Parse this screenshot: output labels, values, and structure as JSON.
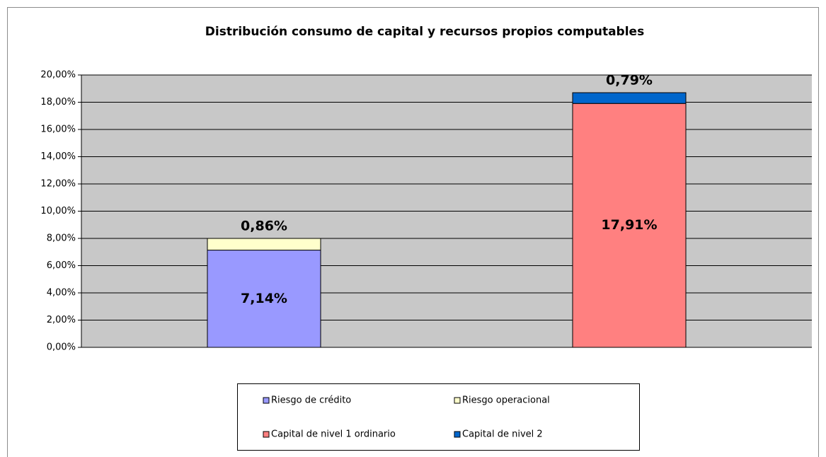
{
  "chart_data": {
    "type": "stacked-bar",
    "title": "Distribución consumo de capital y recursos propios computables",
    "categories": [
      null,
      null
    ],
    "series": [
      {
        "name": "Riesgo de crédito",
        "color": "#9999ff",
        "values": [
          7.14,
          null
        ],
        "value_labels": [
          "7,14%",
          null
        ]
      },
      {
        "name": "Riesgo operacional",
        "color": "#ffffcc",
        "values": [
          0.86,
          null
        ],
        "value_labels": [
          "0,86%",
          null
        ]
      },
      {
        "name": "Capital de nivel 1 ordinario",
        "color": "#ff8080",
        "values": [
          null,
          17.91
        ],
        "value_labels": [
          null,
          "17,91%"
        ]
      },
      {
        "name": "Capital de nivel 2",
        "color": "#0066cc",
        "values": [
          null,
          0.79
        ],
        "value_labels": [
          null,
          "0,79%"
        ]
      }
    ],
    "ylim": [
      0,
      20
    ],
    "yticks": [
      {
        "value": 0,
        "label": "0,00%"
      },
      {
        "value": 2,
        "label": "2,00%"
      },
      {
        "value": 4,
        "label": "4,00%"
      },
      {
        "value": 6,
        "label": "6,00%"
      },
      {
        "value": 8,
        "label": "8,00%"
      },
      {
        "value": 10,
        "label": "10,00%"
      },
      {
        "value": 12,
        "label": "12,00%"
      },
      {
        "value": 14,
        "label": "14,00%"
      },
      {
        "value": 16,
        "label": "16,00%"
      },
      {
        "value": 18,
        "label": "18,00%"
      },
      {
        "value": 20,
        "label": "20,00%"
      }
    ],
    "grid": true,
    "legend": "bottom"
  }
}
